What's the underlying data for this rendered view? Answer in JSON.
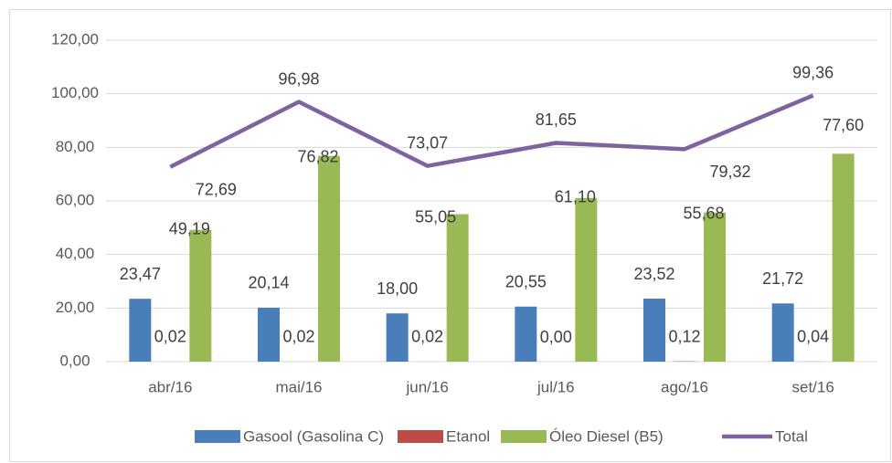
{
  "chart_data": {
    "type": "bar",
    "categories": [
      "abr/16",
      "mai/16",
      "jun/16",
      "jul/16",
      "ago/16",
      "set/16"
    ],
    "series": [
      {
        "name": "Gasool (Gasolina C)",
        "color": "#4a7ebb",
        "values": [
          23.47,
          20.14,
          18.0,
          20.55,
          23.52,
          21.72
        ],
        "value_labels": [
          "23,47",
          "20,14",
          "18,00",
          "20,55",
          "23,52",
          "21,72"
        ]
      },
      {
        "name": "Etanol",
        "color": "#be4b48",
        "values": [
          0.02,
          0.02,
          0.02,
          0.0,
          0.12,
          0.04
        ],
        "value_labels": [
          "0,02",
          "0,02",
          "0,02",
          "0,00",
          "0,12",
          "0,04"
        ]
      },
      {
        "name": "Óleo Diesel (B5)",
        "color": "#98b954",
        "values": [
          49.19,
          76.82,
          55.05,
          61.1,
          55.68,
          77.6
        ],
        "value_labels": [
          "49,19",
          "76,82",
          "55,05",
          "61,10",
          "55,68",
          "77,60"
        ]
      },
      {
        "name": "Total",
        "type": "line",
        "color": "#7f63a1",
        "values": [
          72.69,
          96.98,
          73.07,
          81.65,
          79.32,
          99.36
        ],
        "value_labels": [
          "72,69",
          "96,98",
          "73,07",
          "81,65",
          "79,32",
          "99,36"
        ]
      }
    ],
    "ylim": [
      0,
      120
    ],
    "yticks": [
      {
        "value": 0,
        "label": "0,00"
      },
      {
        "value": 20,
        "label": "20,00"
      },
      {
        "value": 40,
        "label": "40,00"
      },
      {
        "value": 60,
        "label": "60,00"
      },
      {
        "value": 80,
        "label": "80,00"
      },
      {
        "value": 100,
        "label": "100,00"
      },
      {
        "value": 120,
        "label": "120,00"
      }
    ],
    "grid": true,
    "legend": "bottom"
  }
}
